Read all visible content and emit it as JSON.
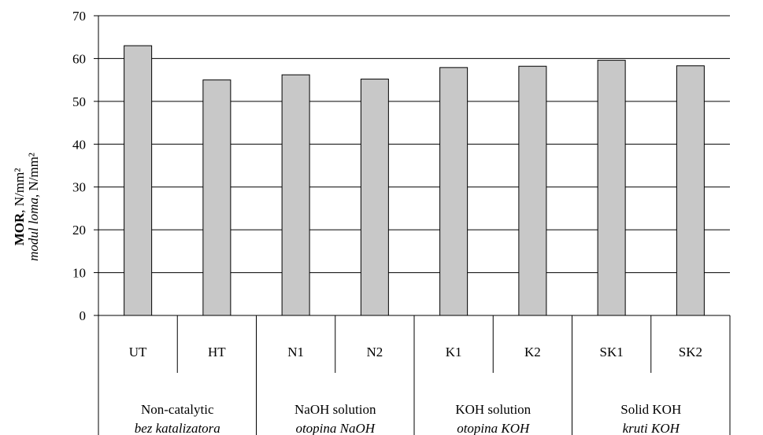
{
  "chart_data": {
    "type": "bar",
    "categories": [
      "UT",
      "HT",
      "N1",
      "N2",
      "K1",
      "K2",
      "SK1",
      "SK2"
    ],
    "values": [
      63,
      55,
      56.2,
      55.2,
      57.9,
      58.2,
      59.6,
      58.3
    ],
    "groups": [
      {
        "label": "Non-catalytic",
        "label2": "bez katalizatora",
        "span": 2
      },
      {
        "label": "NaOH solution",
        "label2": "otopina NaOH",
        "span": 2
      },
      {
        "label": "KOH solution",
        "label2": "otopina KOH",
        "span": 2
      },
      {
        "label": "Solid KOH",
        "label2": "kruti KOH",
        "span": 2
      }
    ],
    "ylabel_bold": "MOR",
    "ylabel_rest": ", N/mm²",
    "ylabel2_it": "modul loma",
    "ylabel2_rest": ", N/mm²",
    "ylim": [
      0,
      70
    ],
    "yticks": [
      0,
      10,
      20,
      30,
      40,
      50,
      60,
      70
    ],
    "grid": true,
    "colors": {
      "bar_fill": "#c8c8c8",
      "bar_stroke": "#000000",
      "grid": "#000000"
    }
  }
}
